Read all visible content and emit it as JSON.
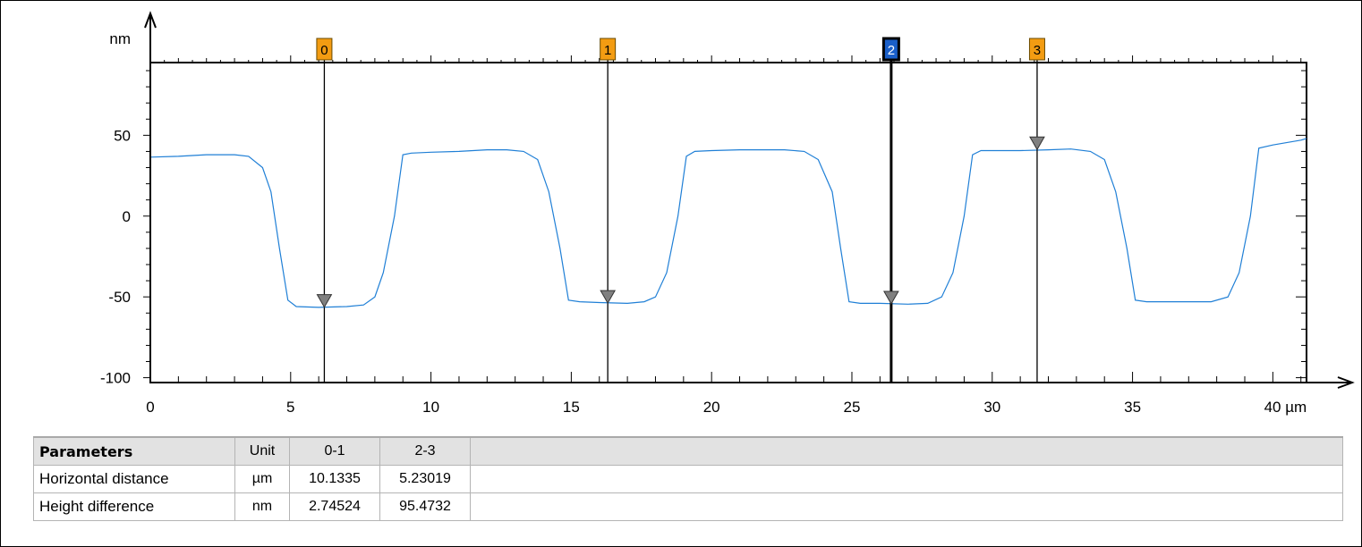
{
  "chart_data": {
    "type": "line",
    "y_unit": "nm",
    "x_unit": "µm",
    "xlim": [
      0,
      41.2
    ],
    "ylim": [
      -103,
      95
    ],
    "x_ticks": [
      {
        "value": 0,
        "label": "0"
      },
      {
        "value": 5,
        "label": "5"
      },
      {
        "value": 10,
        "label": "10"
      },
      {
        "value": 15,
        "label": "15"
      },
      {
        "value": 20,
        "label": "20"
      },
      {
        "value": 25,
        "label": "25"
      },
      {
        "value": 30,
        "label": "30"
      },
      {
        "value": 35,
        "label": "35"
      },
      {
        "value": 40,
        "label": "40 µm"
      }
    ],
    "y_ticks": [
      {
        "value": 50,
        "label": "50"
      },
      {
        "value": 0,
        "label": "0"
      },
      {
        "value": -50,
        "label": "-50"
      },
      {
        "value": -100,
        "label": "-100"
      }
    ],
    "series": [
      {
        "color": "#1f7fd6",
        "points": [
          [
            0,
            36.5
          ],
          [
            1,
            37
          ],
          [
            2,
            38
          ],
          [
            3,
            38
          ],
          [
            3.5,
            37
          ],
          [
            4,
            30
          ],
          [
            4.3,
            15
          ],
          [
            4.6,
            -20
          ],
          [
            4.9,
            -52
          ],
          [
            5.2,
            -56
          ],
          [
            6,
            -56.5
          ],
          [
            7,
            -56
          ],
          [
            7.6,
            -55
          ],
          [
            8,
            -50
          ],
          [
            8.3,
            -35
          ],
          [
            8.7,
            0
          ],
          [
            9,
            38
          ],
          [
            9.3,
            39
          ],
          [
            10,
            39.5
          ],
          [
            11,
            40
          ],
          [
            12,
            41
          ],
          [
            12.7,
            41
          ],
          [
            13.3,
            40
          ],
          [
            13.8,
            35
          ],
          [
            14.2,
            15
          ],
          [
            14.6,
            -20
          ],
          [
            14.9,
            -52
          ],
          [
            15.3,
            -53
          ],
          [
            16,
            -53.5
          ],
          [
            17,
            -54
          ],
          [
            17.6,
            -53
          ],
          [
            18,
            -50
          ],
          [
            18.4,
            -35
          ],
          [
            18.8,
            0
          ],
          [
            19.1,
            37
          ],
          [
            19.4,
            40
          ],
          [
            20,
            40.5
          ],
          [
            21,
            41
          ],
          [
            22,
            41
          ],
          [
            22.6,
            41
          ],
          [
            23.3,
            40
          ],
          [
            23.8,
            35
          ],
          [
            24.3,
            15
          ],
          [
            24.6,
            -20
          ],
          [
            24.9,
            -53
          ],
          [
            25.3,
            -54
          ],
          [
            26,
            -54
          ],
          [
            27,
            -54.5
          ],
          [
            27.7,
            -54
          ],
          [
            28.2,
            -50
          ],
          [
            28.6,
            -35
          ],
          [
            29,
            0
          ],
          [
            29.3,
            38
          ],
          [
            29.6,
            40.5
          ],
          [
            30,
            40.5
          ],
          [
            31,
            40.5
          ],
          [
            32,
            41
          ],
          [
            32.8,
            41.5
          ],
          [
            33.5,
            40
          ],
          [
            34,
            35
          ],
          [
            34.4,
            15
          ],
          [
            34.8,
            -20
          ],
          [
            35.1,
            -52
          ],
          [
            35.5,
            -53
          ],
          [
            36,
            -53
          ],
          [
            37,
            -53
          ],
          [
            37.8,
            -53
          ],
          [
            38.4,
            -50
          ],
          [
            38.8,
            -35
          ],
          [
            39.2,
            0
          ],
          [
            39.5,
            42
          ],
          [
            40,
            44
          ],
          [
            41,
            47
          ],
          [
            41.2,
            48
          ]
        ]
      }
    ],
    "cursors": [
      {
        "label": "0",
        "x": 6.2,
        "y": -53,
        "color": "#f39c12",
        "selected": false
      },
      {
        "label": "1",
        "x": 16.3,
        "y": -50.5,
        "color": "#f39c12",
        "selected": false
      },
      {
        "label": "2",
        "x": 26.4,
        "y": -51,
        "color": "#1a5fc8",
        "selected": true
      },
      {
        "label": "3",
        "x": 31.6,
        "y": 44.5,
        "color": "#f39c12",
        "selected": false
      }
    ]
  },
  "table": {
    "headers": [
      "Parameters",
      "Unit",
      "0-1",
      "2-3"
    ],
    "rows": [
      {
        "name": "Horizontal distance",
        "unit": "µm",
        "v01": "10.1335",
        "v23": "5.23019"
      },
      {
        "name": "Height difference",
        "unit": "nm",
        "v01": "2.74524",
        "v23": "95.4732"
      }
    ]
  }
}
